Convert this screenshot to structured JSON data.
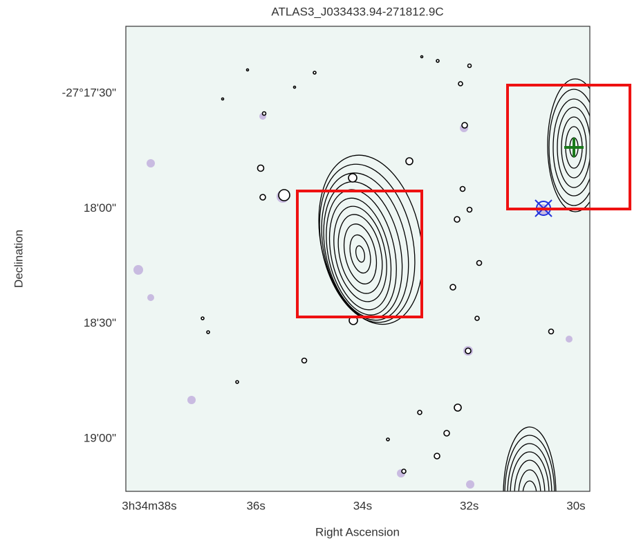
{
  "chart_data": {
    "type": "image",
    "title": "ATLAS3_J033433.94-271812.9C",
    "xlabel": "Right Ascension",
    "ylabel": "Declination",
    "xlim": [
      38.44,
      29.74
    ],
    "xticks": [
      {
        "value": 38,
        "label": "3h34m38s"
      },
      {
        "value": 36,
        "label": "36s"
      },
      {
        "value": 34,
        "label": "34s"
      },
      {
        "value": 32,
        "label": "32s"
      },
      {
        "value": 30,
        "label": "30s"
      }
    ],
    "ylim": [
      12.5,
      133.7
    ],
    "yticks": [
      {
        "value": 30,
        "label": "-27°17'30\""
      },
      {
        "value": 60,
        "label": "18'00\""
      },
      {
        "value": 90,
        "label": "18'30\""
      },
      {
        "value": 120,
        "label": "19'00\""
      }
    ]
  }
}
